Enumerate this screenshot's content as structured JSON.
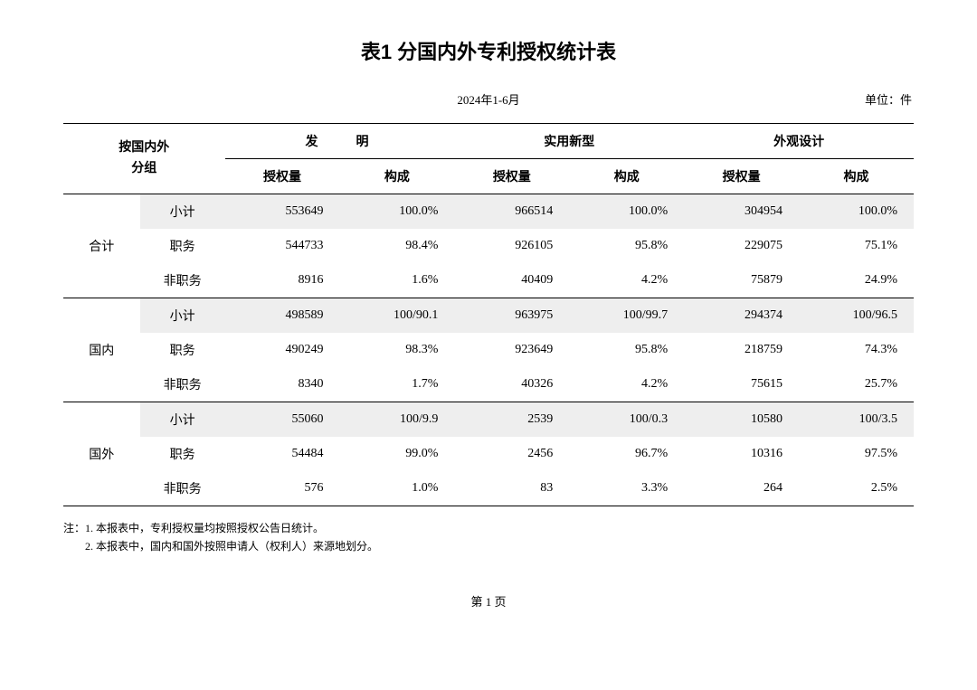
{
  "title": "表1  分国内外专利授权统计表",
  "period": "2024年1-6月",
  "unit": "单位：件",
  "group_header": "按国内外\n分组",
  "cols": {
    "c1": "发　明",
    "c2": "实用新型",
    "c3": "外观设计",
    "sub_a": "授权量",
    "sub_b": "构成"
  },
  "groups": [
    {
      "label": "合计",
      "rows": [
        {
          "sub": "小计",
          "v": [
            "553649",
            "100.0%",
            "966514",
            "100.0%",
            "304954",
            "100.0%"
          ],
          "shaded": true
        },
        {
          "sub": "职务",
          "v": [
            "544733",
            "98.4%",
            "926105",
            "95.8%",
            "229075",
            "75.1%"
          ]
        },
        {
          "sub": "非职务",
          "v": [
            "8916",
            "1.6%",
            "40409",
            "4.2%",
            "75879",
            "24.9%"
          ]
        }
      ]
    },
    {
      "label": "国内",
      "rows": [
        {
          "sub": "小计",
          "v": [
            "498589",
            "100/90.1",
            "963975",
            "100/99.7",
            "294374",
            "100/96.5"
          ],
          "shaded": true
        },
        {
          "sub": "职务",
          "v": [
            "490249",
            "98.3%",
            "923649",
            "95.8%",
            "218759",
            "74.3%"
          ]
        },
        {
          "sub": "非职务",
          "v": [
            "8340",
            "1.7%",
            "40326",
            "4.2%",
            "75615",
            "25.7%"
          ]
        }
      ]
    },
    {
      "label": "国外",
      "rows": [
        {
          "sub": "小计",
          "v": [
            "55060",
            "100/9.9",
            "2539",
            "100/0.3",
            "10580",
            "100/3.5"
          ],
          "shaded": true
        },
        {
          "sub": "职务",
          "v": [
            "54484",
            "99.0%",
            "2456",
            "96.7%",
            "10316",
            "97.5%"
          ]
        },
        {
          "sub": "非职务",
          "v": [
            "576",
            "1.0%",
            "83",
            "3.3%",
            "264",
            "2.5%"
          ]
        }
      ]
    }
  ],
  "notes": [
    "注：1. 本报表中，专利授权量均按照授权公告日统计。",
    "　　2. 本报表中，国内和国外按照申请人（权利人）来源地划分。"
  ],
  "page": "第  1  页"
}
